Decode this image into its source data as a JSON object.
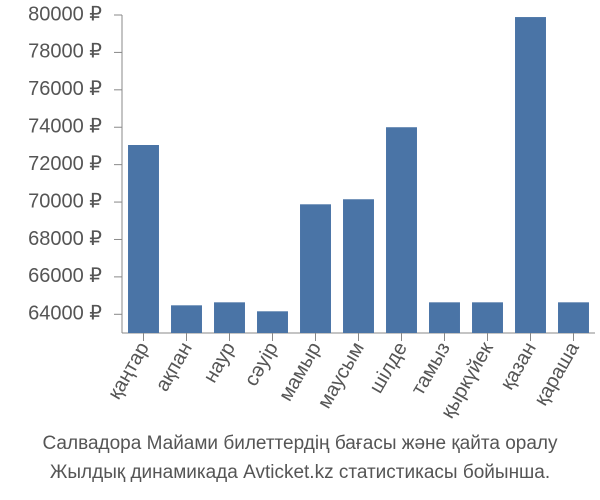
{
  "chart_data": {
    "type": "bar",
    "caption": [
      "Салвадора Майами билеттердің бағасы және қайта оралу",
      "Жылдық динамикада Avticket.kz статистикасы бойынша."
    ],
    "categories": [
      "қаңтар",
      "ақпан",
      "наур",
      "сәуір",
      "мамыр",
      "маусым",
      "шілде",
      "тамыз",
      "қыркүйек",
      "қазан",
      "қараша"
    ],
    "values": [
      73050,
      64480,
      64640,
      64160,
      69880,
      70150,
      74000,
      64640,
      64640,
      79890,
      64640
    ],
    "color": "#4a74a6",
    "ylim": [
      63000,
      80000
    ],
    "yticks": [
      {
        "value": 64000,
        "label": "64000 ₽"
      },
      {
        "value": 66000,
        "label": "66000 ₽"
      },
      {
        "value": 68000,
        "label": "68000 ₽"
      },
      {
        "value": 70000,
        "label": "70000 ₽"
      },
      {
        "value": 72000,
        "label": "72000 ₽"
      },
      {
        "value": 74000,
        "label": "74000 ₽"
      },
      {
        "value": 76000,
        "label": "76000 ₽"
      },
      {
        "value": 78000,
        "label": "78000 ₽"
      },
      {
        "value": 80000,
        "label": "80000 ₽"
      }
    ],
    "grid": false
  }
}
